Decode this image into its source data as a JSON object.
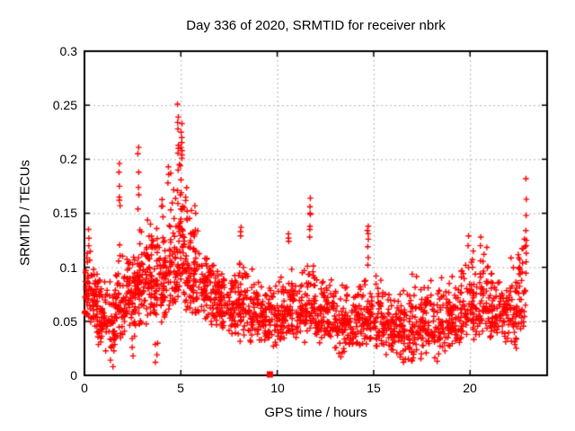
{
  "chart_data": {
    "type": "scatter",
    "title": "Day 336 of 2020, SRMTID for receiver nbrk",
    "xlabel": "GPS time / hours",
    "ylabel": "SRMTID / TECUs",
    "xlim": [
      0,
      24
    ],
    "ylim": [
      0,
      0.3
    ],
    "grid": true,
    "legend": false,
    "xticks": {
      "values": [
        0,
        5,
        10,
        15,
        20
      ],
      "labels": [
        "0",
        "5",
        "10",
        "15",
        "20"
      ]
    },
    "yticks": {
      "values": [
        0.3,
        0.25,
        0.2,
        0.15,
        0.1,
        0.05,
        0
      ],
      "labels": [
        "0.3",
        "0.25",
        "0.2",
        "0.15",
        "0.1",
        "0.05",
        "0"
      ]
    },
    "marker": {
      "shape": "plus",
      "color": "#ff0000",
      "size": 7
    },
    "colors": {
      "marker": "#ff0000",
      "grid": "#b4b4b4",
      "border": "#000000",
      "background": "#ffffff",
      "text": "#000000"
    },
    "cloud_segments": [
      [
        0.0,
        0.35,
        0.048,
        0.135,
        0.082,
        40
      ],
      [
        0.35,
        0.7,
        0.035,
        0.11,
        0.07,
        42
      ],
      [
        0.7,
        1.1,
        0.025,
        0.1,
        0.06,
        44
      ],
      [
        1.1,
        1.6,
        0.015,
        0.095,
        0.05,
        48
      ],
      [
        1.6,
        2.0,
        0.03,
        0.125,
        0.068,
        44
      ],
      [
        2.0,
        2.4,
        0.03,
        0.115,
        0.07,
        44
      ],
      [
        2.4,
        2.8,
        0.022,
        0.13,
        0.075,
        46
      ],
      [
        2.8,
        3.2,
        0.04,
        0.142,
        0.088,
        48
      ],
      [
        3.2,
        3.6,
        0.045,
        0.148,
        0.095,
        48
      ],
      [
        3.6,
        4.0,
        0.025,
        0.138,
        0.085,
        46
      ],
      [
        4.0,
        4.4,
        0.05,
        0.19,
        0.1,
        48
      ],
      [
        4.4,
        4.8,
        0.06,
        0.205,
        0.11,
        48
      ],
      [
        4.8,
        5.2,
        0.07,
        0.24,
        0.12,
        52
      ],
      [
        5.2,
        5.6,
        0.06,
        0.2,
        0.1,
        48
      ],
      [
        5.6,
        6.0,
        0.05,
        0.155,
        0.09,
        46
      ],
      [
        6.0,
        6.5,
        0.048,
        0.118,
        0.08,
        50
      ],
      [
        6.5,
        7.0,
        0.042,
        0.112,
        0.075,
        50
      ],
      [
        7.0,
        7.5,
        0.04,
        0.105,
        0.07,
        48
      ],
      [
        7.5,
        8.0,
        0.035,
        0.1,
        0.065,
        48
      ],
      [
        8.0,
        8.5,
        0.03,
        0.115,
        0.065,
        46
      ],
      [
        8.5,
        9.0,
        0.028,
        0.1,
        0.06,
        44
      ],
      [
        9.0,
        9.5,
        0.028,
        0.092,
        0.055,
        44
      ],
      [
        9.5,
        10.0,
        0.025,
        0.09,
        0.055,
        44
      ],
      [
        10.0,
        10.5,
        0.028,
        0.098,
        0.058,
        44
      ],
      [
        10.5,
        11.0,
        0.03,
        0.105,
        0.06,
        44
      ],
      [
        11.0,
        11.5,
        0.03,
        0.1,
        0.06,
        44
      ],
      [
        11.5,
        12.0,
        0.035,
        0.12,
        0.065,
        44
      ],
      [
        12.0,
        12.5,
        0.03,
        0.098,
        0.058,
        44
      ],
      [
        12.5,
        13.0,
        0.028,
        0.092,
        0.055,
        44
      ],
      [
        13.0,
        13.5,
        0.018,
        0.088,
        0.05,
        44
      ],
      [
        13.5,
        14.0,
        0.025,
        0.09,
        0.05,
        44
      ],
      [
        14.0,
        14.5,
        0.025,
        0.092,
        0.052,
        44
      ],
      [
        14.5,
        15.0,
        0.028,
        0.1,
        0.055,
        44
      ],
      [
        15.0,
        15.5,
        0.02,
        0.1,
        0.05,
        44
      ],
      [
        15.5,
        16.0,
        0.018,
        0.088,
        0.046,
        44
      ],
      [
        16.0,
        16.5,
        0.015,
        0.085,
        0.045,
        44
      ],
      [
        16.5,
        17.0,
        0.012,
        0.088,
        0.042,
        44
      ],
      [
        17.0,
        17.5,
        0.015,
        0.098,
        0.046,
        44
      ],
      [
        17.5,
        18.0,
        0.02,
        0.092,
        0.05,
        44
      ],
      [
        18.0,
        18.5,
        0.015,
        0.088,
        0.046,
        42
      ],
      [
        18.5,
        19.0,
        0.02,
        0.096,
        0.05,
        42
      ],
      [
        19.0,
        19.5,
        0.025,
        0.1,
        0.055,
        42
      ],
      [
        19.5,
        20.0,
        0.03,
        0.118,
        0.06,
        42
      ],
      [
        20.0,
        20.5,
        0.03,
        0.115,
        0.065,
        44
      ],
      [
        20.5,
        21.0,
        0.035,
        0.125,
        0.07,
        44
      ],
      [
        21.0,
        21.5,
        0.03,
        0.112,
        0.065,
        44
      ],
      [
        21.5,
        22.0,
        0.028,
        0.1,
        0.06,
        42
      ],
      [
        22.0,
        22.5,
        0.025,
        0.112,
        0.06,
        42
      ],
      [
        22.5,
        22.95,
        0.04,
        0.14,
        0.075,
        38
      ]
    ],
    "spike_columns": [
      [
        0.22,
        [
          0.12,
          0.127,
          0.135
        ]
      ],
      [
        1.82,
        [
          0.157,
          0.162,
          0.165,
          0.175,
          0.188,
          0.196
        ]
      ],
      [
        2.8,
        [
          0.154,
          0.167,
          0.174,
          0.188,
          0.205,
          0.211
        ]
      ],
      [
        4.35,
        [
          0.178,
          0.186,
          0.193
        ]
      ],
      [
        4.85,
        [
          0.159,
          0.171,
          0.19,
          0.21,
          0.213,
          0.228,
          0.234,
          0.239,
          0.251
        ]
      ],
      [
        5.03,
        [
          0.154,
          0.169,
          0.181,
          0.201,
          0.204,
          0.208,
          0.211,
          0.22,
          0.225,
          0.233
        ]
      ],
      [
        5.75,
        [
          0.15,
          0.157
        ]
      ],
      [
        8.1,
        [
          0.129,
          0.133,
          0.137
        ]
      ],
      [
        10.6,
        [
          0.124,
          0.127,
          0.131
        ]
      ],
      [
        11.7,
        [
          0.128,
          0.135,
          0.138,
          0.149,
          0.15,
          0.156,
          0.164
        ]
      ],
      [
        14.7,
        [
          0.102,
          0.109,
          0.119,
          0.126,
          0.131,
          0.134,
          0.138
        ]
      ],
      [
        19.9,
        [
          0.12,
          0.129
        ]
      ],
      [
        20.15,
        [
          0.1,
          0.107,
          0.115
        ]
      ],
      [
        20.55,
        [
          0.12,
          0.128
        ]
      ],
      [
        22.9,
        [
          0.105,
          0.113,
          0.12,
          0.125,
          0.134,
          0.148,
          0.163,
          0.182
        ]
      ]
    ],
    "outlier_points": [
      [
        1.35,
        0.014
      ],
      [
        1.48,
        0.008
      ],
      [
        2.52,
        0.018
      ],
      [
        3.68,
        0.012
      ],
      [
        3.76,
        0.019
      ],
      [
        13.3,
        0.017
      ],
      [
        16.55,
        0.012
      ],
      [
        17.0,
        0.014
      ],
      [
        18.3,
        0.013
      ],
      [
        22.4,
        0.025
      ]
    ],
    "square_marker": {
      "x": 9.62,
      "y": 0,
      "shape": "filled-square",
      "color": "#ff0000"
    }
  }
}
